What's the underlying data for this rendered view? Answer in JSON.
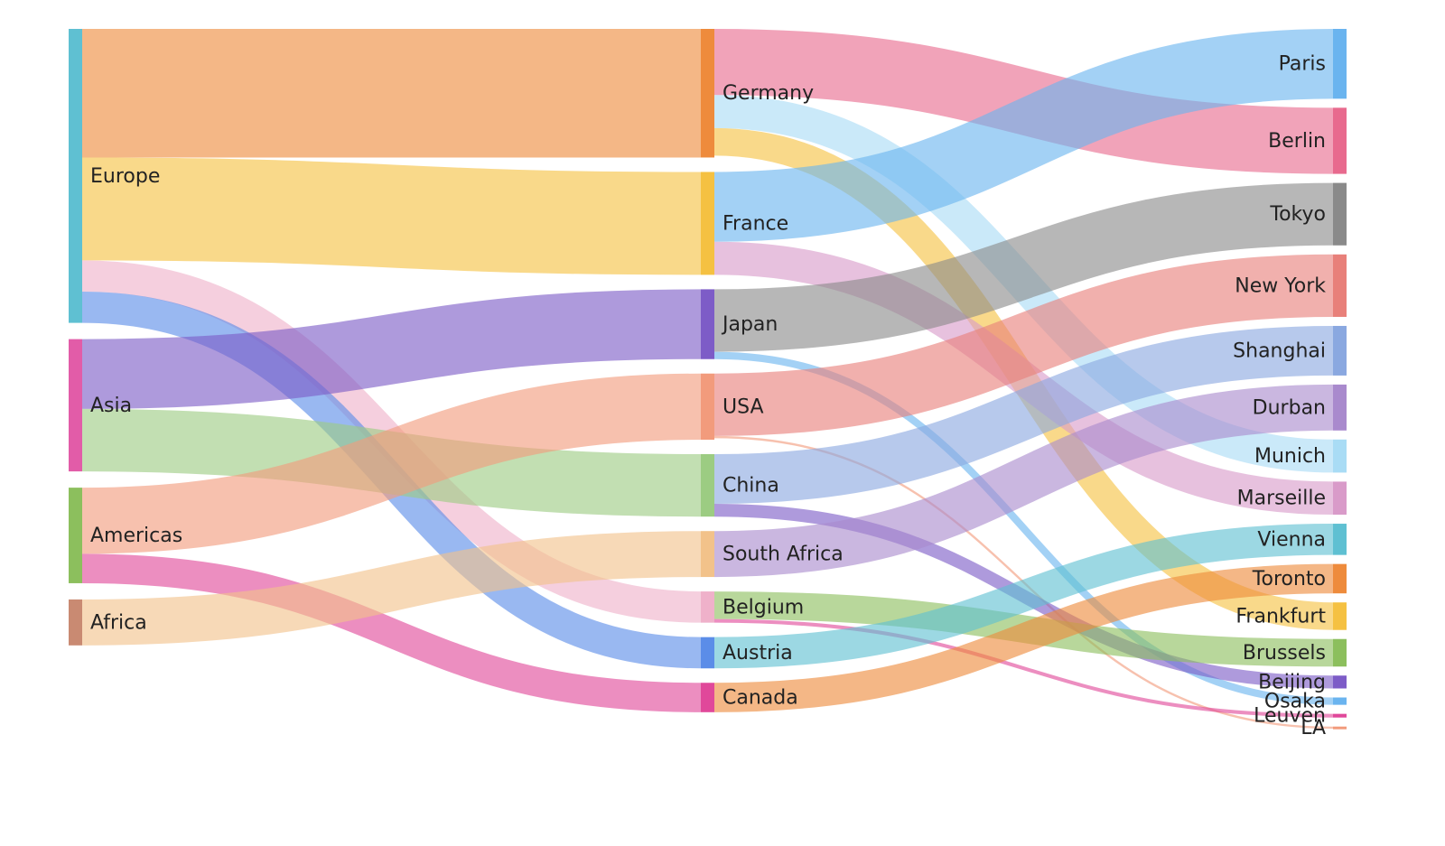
{
  "chart_data": {
    "type": "sankey",
    "columns": [
      [
        "Europe",
        "Asia",
        "Americas",
        "Africa"
      ],
      [
        "Germany",
        "France",
        "Japan",
        "USA",
        "China",
        "South Africa",
        "Belgium",
        "Austria",
        "Canada"
      ],
      [
        "Paris",
        "Berlin",
        "Tokyo",
        "New York",
        "Shanghai",
        "Durban",
        "Munich",
        "Marseille",
        "Vienna",
        "Toronto",
        "Frankfurt",
        "Brussels",
        "Beijing",
        "Osaka",
        "Leuven",
        "LA"
      ]
    ],
    "nodes": {
      "Europe": {
        "label": "Europe",
        "color": "#5fc0d2"
      },
      "Asia": {
        "label": "Asia",
        "color": "#e25ca8"
      },
      "Americas": {
        "label": "Americas",
        "color": "#8cbf5d"
      },
      "Africa": {
        "label": "Africa",
        "color": "#c98a72"
      },
      "Germany": {
        "label": "Germany",
        "color": "#ee8b3c"
      },
      "France": {
        "label": "France",
        "color": "#f5c142"
      },
      "Japan": {
        "label": "Japan",
        "color": "#7d5cc7"
      },
      "USA": {
        "label": "USA",
        "color": "#f29b7c"
      },
      "China": {
        "label": "China",
        "color": "#9ccc82"
      },
      "South Africa": {
        "label": "South Africa",
        "color": "#f2c28a"
      },
      "Belgium": {
        "label": "Belgium",
        "color": "#efb1ca"
      },
      "Austria": {
        "label": "Austria",
        "color": "#5b8de8"
      },
      "Canada": {
        "label": "Canada",
        "color": "#e0489a"
      },
      "Paris": {
        "label": "Paris",
        "color": "#6ab4ef"
      },
      "Berlin": {
        "label": "Berlin",
        "color": "#e86a8e"
      },
      "Tokyo": {
        "label": "Tokyo",
        "color": "#8a8a8a"
      },
      "New York": {
        "label": "New York",
        "color": "#e8807a"
      },
      "Shanghai": {
        "label": "Shanghai",
        "color": "#8aa8e0"
      },
      "Durban": {
        "label": "Durban",
        "color": "#a98acd"
      },
      "Munich": {
        "label": "Munich",
        "color": "#a9dcf5"
      },
      "Marseille": {
        "label": "Marseille",
        "color": "#d99bc9"
      },
      "Vienna": {
        "label": "Vienna",
        "color": "#5fc0d2"
      },
      "Toronto": {
        "label": "Toronto",
        "color": "#ee8b3c"
      },
      "Frankfurt": {
        "label": "Frankfurt",
        "color": "#f5c142"
      },
      "Brussels": {
        "label": "Brussels",
        "color": "#8cbf5d"
      },
      "Beijing": {
        "label": "Beijing",
        "color": "#7d5cc7"
      },
      "Osaka": {
        "label": "Osaka",
        "color": "#6ab4ef"
      },
      "Leuven": {
        "label": "Leuven",
        "color": "#e0489a"
      },
      "LA": {
        "label": "LA",
        "color": "#f29b7c"
      }
    },
    "links": [
      {
        "source": "Europe",
        "target": "Germany",
        "value": 35
      },
      {
        "source": "Europe",
        "target": "France",
        "value": 28
      },
      {
        "source": "Europe",
        "target": "Belgium",
        "value": 8.5
      },
      {
        "source": "Europe",
        "target": "Austria",
        "value": 8.5
      },
      {
        "source": "Asia",
        "target": "Japan",
        "value": 19
      },
      {
        "source": "Asia",
        "target": "China",
        "value": 17
      },
      {
        "source": "Americas",
        "target": "USA",
        "value": 18
      },
      {
        "source": "Americas",
        "target": "Canada",
        "value": 8
      },
      {
        "source": "Africa",
        "target": "South Africa",
        "value": 12.5
      },
      {
        "source": "Germany",
        "target": "Berlin",
        "value": 18
      },
      {
        "source": "Germany",
        "target": "Munich",
        "value": 9
      },
      {
        "source": "Germany",
        "target": "Frankfurt",
        "value": 7.5
      },
      {
        "source": "France",
        "target": "Paris",
        "value": 19
      },
      {
        "source": "France",
        "target": "Marseille",
        "value": 9
      },
      {
        "source": "Japan",
        "target": "Tokyo",
        "value": 17
      },
      {
        "source": "Japan",
        "target": "Osaka",
        "value": 2
      },
      {
        "source": "USA",
        "target": "New York",
        "value": 17
      },
      {
        "source": "USA",
        "target": "LA",
        "value": 0.6
      },
      {
        "source": "China",
        "target": "Shanghai",
        "value": 13.5
      },
      {
        "source": "China",
        "target": "Beijing",
        "value": 3.5
      },
      {
        "source": "South Africa",
        "target": "Durban",
        "value": 12.5
      },
      {
        "source": "Belgium",
        "target": "Brussels",
        "value": 7.5
      },
      {
        "source": "Belgium",
        "target": "Leuven",
        "value": 1
      },
      {
        "source": "Austria",
        "target": "Vienna",
        "value": 8.5
      },
      {
        "source": "Canada",
        "target": "Toronto",
        "value": 8
      }
    ]
  }
}
